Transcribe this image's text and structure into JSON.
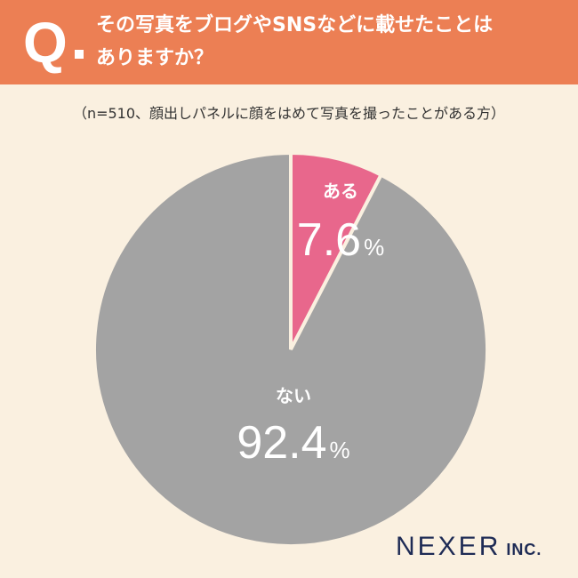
{
  "header": {
    "q_label": "Q",
    "question_line1": "その写真をブログやSNSなどに載せたことは",
    "question_line2": "ありますか？"
  },
  "note": "（n=510、顔出しパネルに顔をはめて写真を撮ったことがある方）",
  "logo": {
    "main": "NEXER",
    "sub": "INC."
  },
  "colors": {
    "header_bg": "#EC7F54",
    "page_bg": "#FAF0E0",
    "slice_yes": "#E8678C",
    "slice_no": "#A3A3A3",
    "slice_border": "#FAF0E0"
  },
  "chart_data": {
    "type": "pie",
    "start": "12 o'clock, clockwise",
    "slices": [
      {
        "label": "ある",
        "value": 7.6,
        "display": "7.6",
        "unit": "%",
        "color": "#E8678C"
      },
      {
        "label": "ない",
        "value": 92.4,
        "display": "92.4",
        "unit": "%",
        "color": "#A3A3A3"
      }
    ]
  }
}
